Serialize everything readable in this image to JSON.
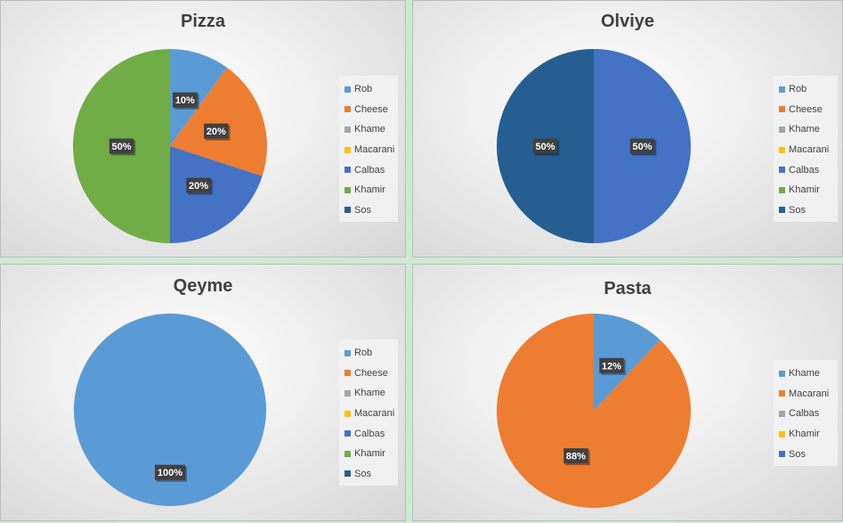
{
  "chart_data": [
    {
      "type": "pie",
      "title": "Pizza",
      "legend": [
        "Rob",
        "Cheese",
        "Khame",
        "Macarani",
        "Calbas",
        "Khamir",
        "Sos"
      ],
      "colors": [
        "#5B9BD5",
        "#ED7D31",
        "#A5A5A5",
        "#FFC000",
        "#4472C4",
        "#70AD47",
        "#255E91"
      ],
      "values": [
        10,
        20,
        0,
        0,
        20,
        50,
        0
      ],
      "labels": [
        "10%",
        "20%",
        "",
        "",
        "20%",
        "50%",
        ""
      ],
      "legend_position": "right"
    },
    {
      "type": "pie",
      "title": "Olviye",
      "legend": [
        "Rob",
        "Cheese",
        "Khame",
        "Macarani",
        "Calbas",
        "Khamir",
        "Sos"
      ],
      "colors": [
        "#5B9BD5",
        "#ED7D31",
        "#A5A5A5",
        "#FFC000",
        "#4472C4",
        "#70AD47",
        "#255E91"
      ],
      "values": [
        0,
        0,
        0,
        0,
        50,
        0,
        50
      ],
      "labels": [
        "",
        "",
        "",
        "",
        "50%",
        "",
        "50%"
      ],
      "legend_position": "right"
    },
    {
      "type": "pie",
      "title": "Qeyme",
      "legend": [
        "Rob",
        "Cheese",
        "Khame",
        "Macarani",
        "Calbas",
        "Khamir",
        "Sos"
      ],
      "colors": [
        "#5B9BD5",
        "#ED7D31",
        "#A5A5A5",
        "#FFC000",
        "#4472C4",
        "#70AD47",
        "#255E91"
      ],
      "values": [
        100,
        0,
        0,
        0,
        0,
        0,
        0
      ],
      "labels": [
        "100%",
        "",
        "",
        "",
        "",
        "",
        ""
      ],
      "legend_position": "right"
    },
    {
      "type": "pie",
      "title": "Pasta",
      "legend": [
        "Khame",
        "Macarani",
        "Calbas",
        "Khamir",
        "Sos"
      ],
      "colors": [
        "#5B9BD5",
        "#ED7D31",
        "#A5A5A5",
        "#FFC000",
        "#4472C4"
      ],
      "values": [
        12,
        88,
        0,
        0,
        0
      ],
      "labels": [
        "12%",
        "88%",
        "",
        "",
        ""
      ],
      "legend_position": "right"
    }
  ]
}
